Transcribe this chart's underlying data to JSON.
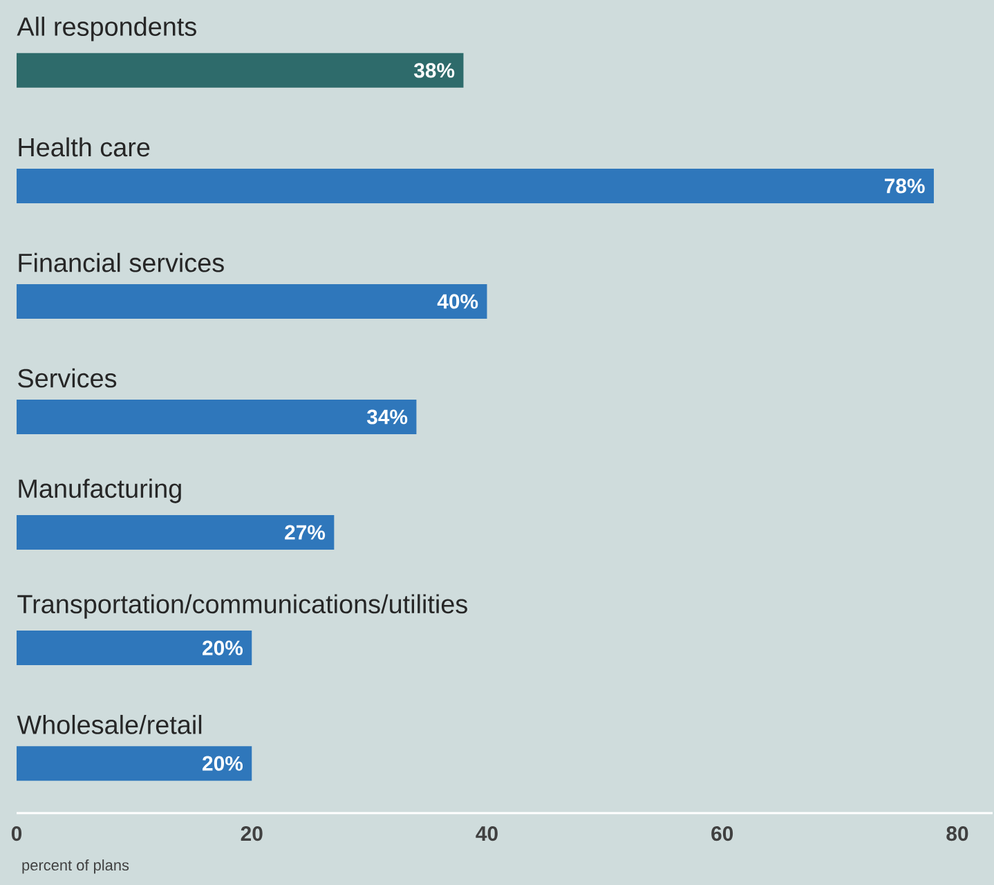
{
  "chart_data": {
    "type": "bar",
    "orientation": "horizontal",
    "categories": [
      "All respondents",
      "Health care",
      "Financial services",
      "Services",
      "Manufacturing",
      "Transportation/communications/utilities",
      "Wholesale/retail"
    ],
    "values": [
      38,
      78,
      40,
      34,
      27,
      20,
      20
    ],
    "value_labels": [
      "38%",
      "78%",
      "40%",
      "34%",
      "27%",
      "20%",
      "20%"
    ],
    "colors": [
      "#2e6b6b",
      "#2f77bb",
      "#2f77bb",
      "#2f77bb",
      "#2f77bb",
      "#2f77bb",
      "#2f77bb"
    ],
    "xlim": [
      0,
      83
    ],
    "xticks": [
      0,
      20,
      40,
      60,
      80
    ],
    "xlabel": "percent of plans"
  }
}
